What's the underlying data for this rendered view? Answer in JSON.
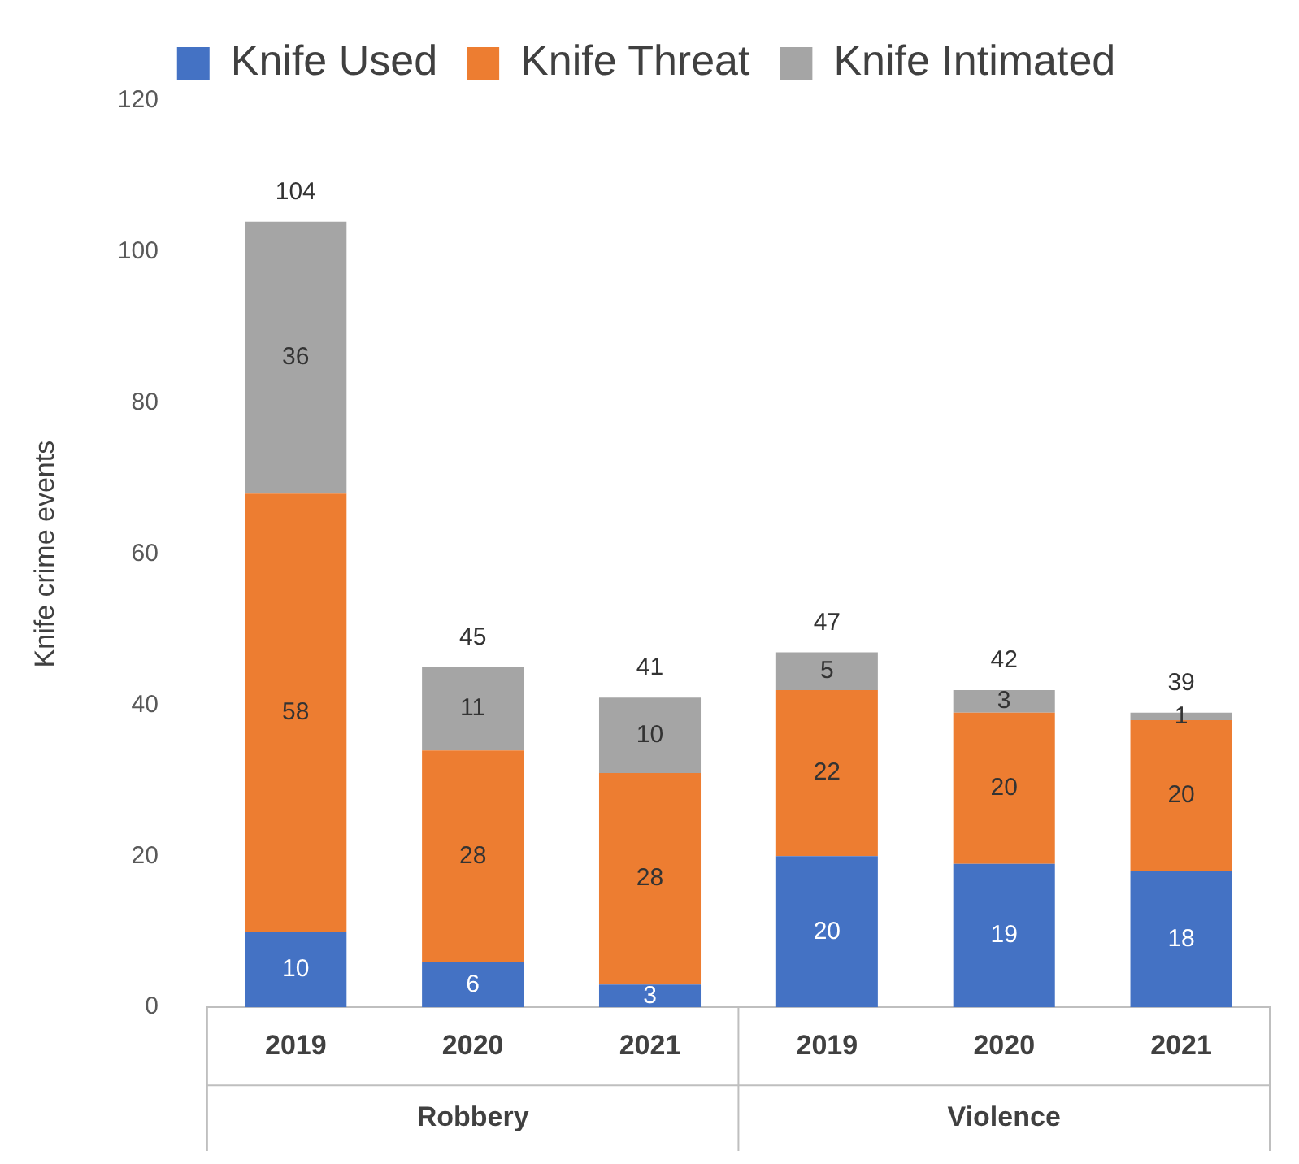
{
  "chart_data": {
    "type": "bar",
    "stacked": true,
    "ylabel": "Knife crime events",
    "categories": [
      "2019",
      "2020",
      "2021",
      "2019",
      "2020",
      "2021"
    ],
    "series": [
      {
        "name": "Knife Used",
        "color": "#4472c4",
        "values": [
          10,
          6,
          3,
          20,
          19,
          18
        ]
      },
      {
        "name": "Knife Threat",
        "color": "#ed7d31",
        "values": [
          58,
          28,
          28,
          22,
          20,
          20
        ]
      },
      {
        "name": "Knife Intimated",
        "color": "#a5a5a5",
        "values": [
          36,
          11,
          10,
          5,
          3,
          1
        ]
      }
    ],
    "totals": [
      "104",
      "45",
      "41",
      "47",
      "42",
      "39"
    ],
    "data_labels": true,
    "ylim": [
      0,
      120
    ],
    "yticks": [
      0,
      20,
      40,
      60,
      80,
      100,
      120
    ],
    "legend": "top",
    "annotations": [
      "Robbery",
      "Violence"
    ]
  }
}
